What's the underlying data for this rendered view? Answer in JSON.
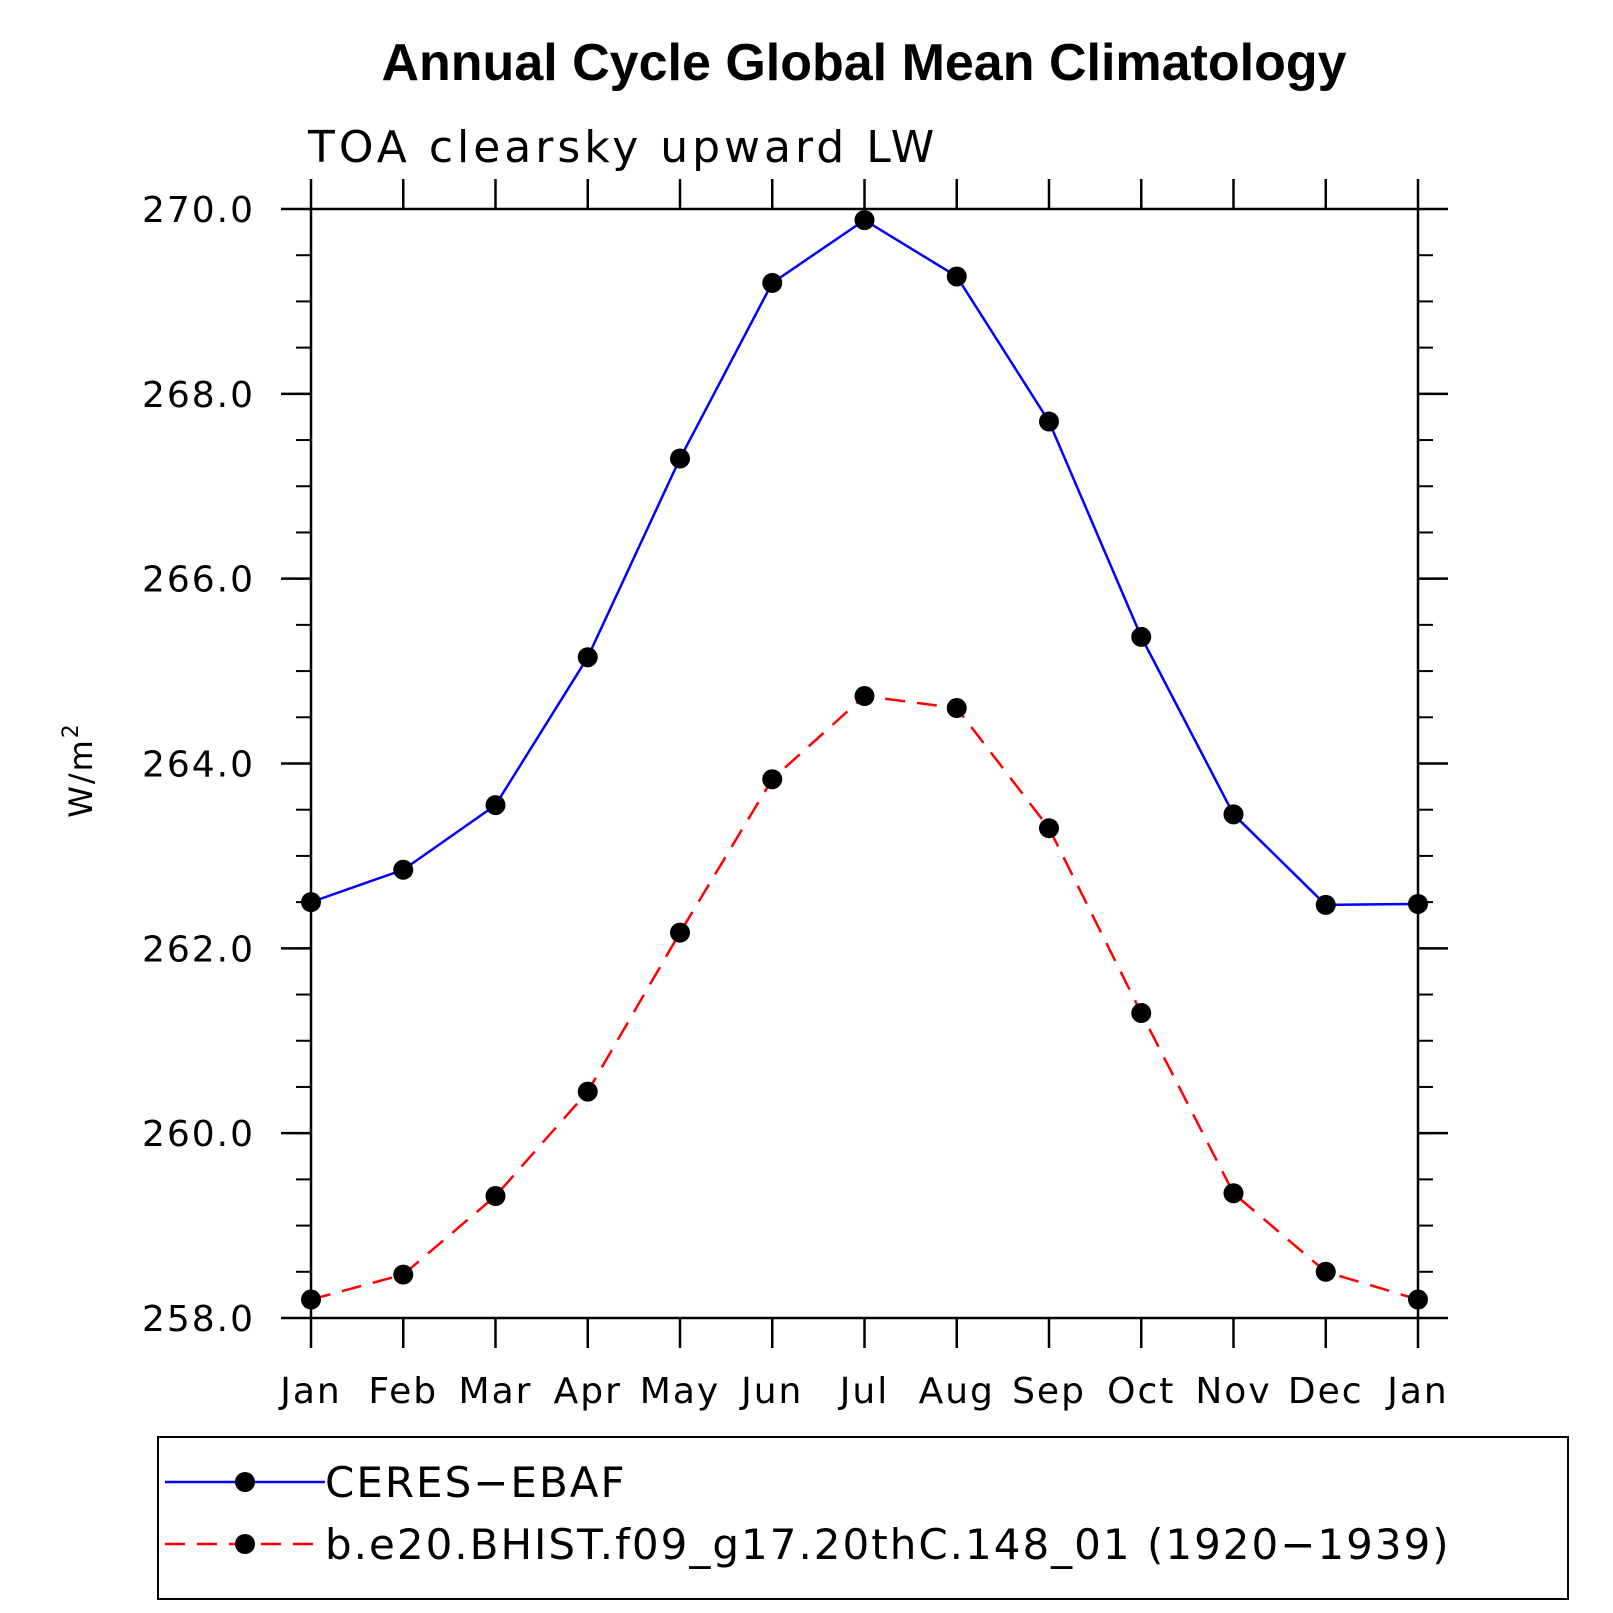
{
  "chart_data": {
    "type": "line",
    "title": "Annual Cycle Global Mean Climatology",
    "subtitle": "TOA clearsky upward LW",
    "xlabel": "",
    "ylabel": "W/m",
    "ylabel_superscript": "2",
    "categories": [
      "Jan",
      "Feb",
      "Mar",
      "Apr",
      "May",
      "Jun",
      "Jul",
      "Aug",
      "Sep",
      "Oct",
      "Nov",
      "Dec",
      "Jan"
    ],
    "ylim": [
      258.0,
      270.0
    ],
    "yticks": [
      "258.0",
      "260.0",
      "262.0",
      "264.0",
      "266.0",
      "268.0",
      "270.0"
    ],
    "ytick_values": [
      258,
      260,
      262,
      264,
      266,
      268,
      270
    ],
    "yminor_step": 0.5,
    "grid": false,
    "legend_position": "bottom",
    "series": [
      {
        "name": "CERES−EBAF",
        "color": "#0000ff",
        "style": "solid",
        "values": [
          262.5,
          262.85,
          263.55,
          265.15,
          267.3,
          269.2,
          269.88,
          269.27,
          267.7,
          265.37,
          263.45,
          262.47,
          262.48
        ]
      },
      {
        "name": "b.e20.BHIST.f09_g17.20thC.148_01 (1920−1939)",
        "color": "#ff0000",
        "style": "dashed",
        "values": [
          258.2,
          258.47,
          259.32,
          260.45,
          262.17,
          263.83,
          264.73,
          264.6,
          263.3,
          261.3,
          259.35,
          258.5,
          258.2
        ]
      }
    ]
  }
}
